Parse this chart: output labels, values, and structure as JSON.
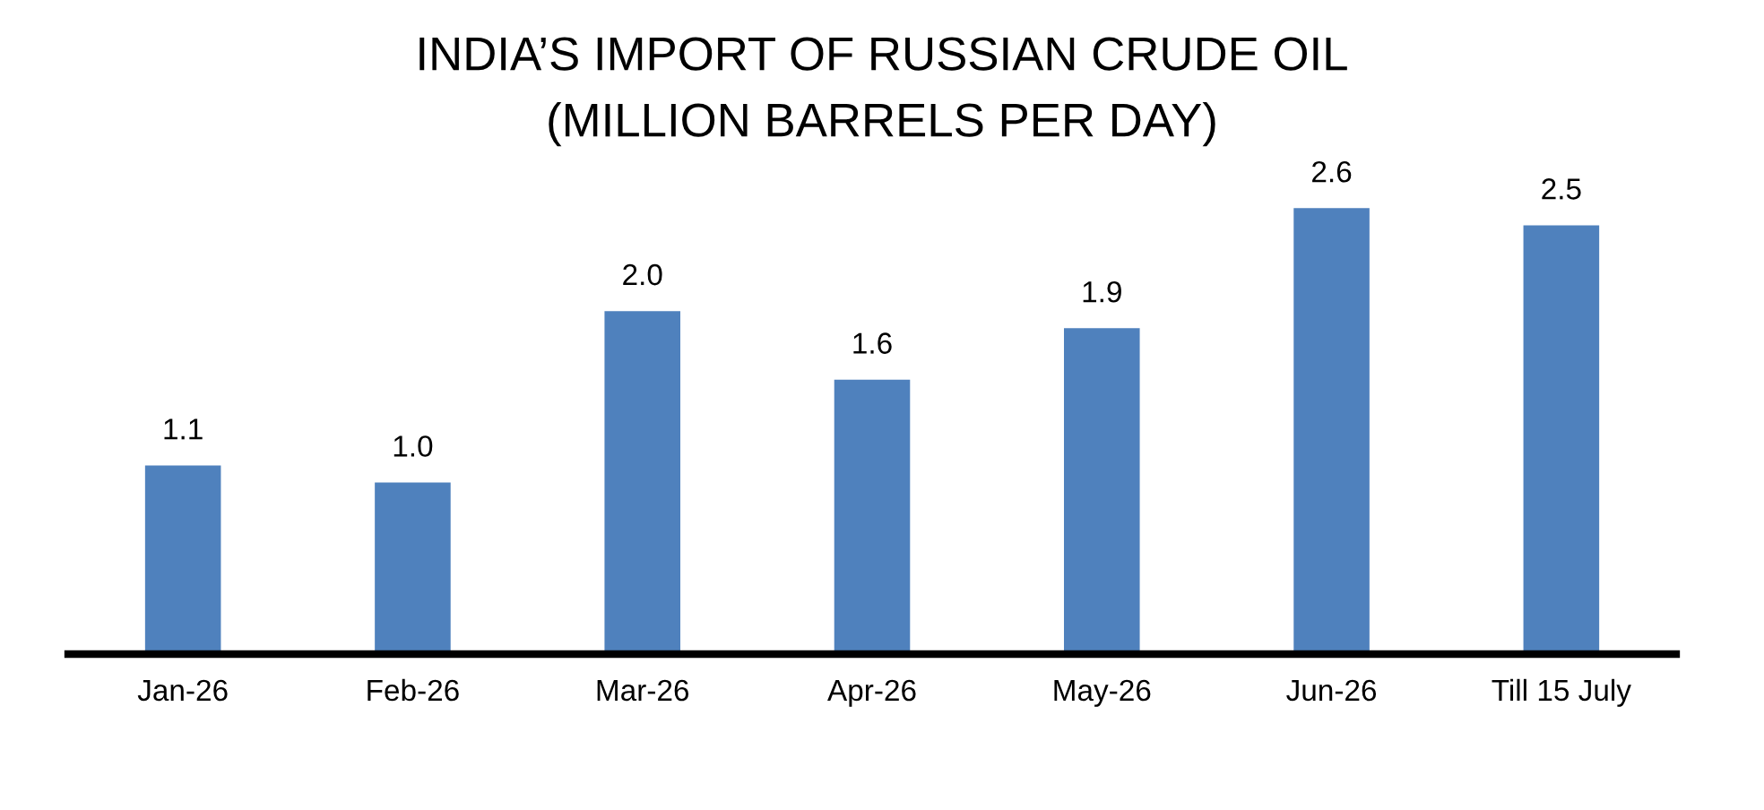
{
  "chart_data": {
    "type": "bar",
    "title": "INDIA’S IMPORT OF RUSSIAN CRUDE OIL\n(MILLION BARRELS PER DAY)",
    "categories": [
      "Jan-26",
      "Feb-26",
      "Mar-26",
      "Apr-26",
      "May-26",
      "Jun-26",
      "Till 15 July"
    ],
    "values": [
      1.1,
      1.0,
      2.0,
      1.6,
      1.9,
      2.6,
      2.5
    ],
    "color": "#4f81bd",
    "value_labels": [
      "1.1",
      "1.0",
      "2.0",
      "1.6",
      "1.9",
      "2.6",
      "2.5"
    ],
    "tick_labels": "x"
  }
}
